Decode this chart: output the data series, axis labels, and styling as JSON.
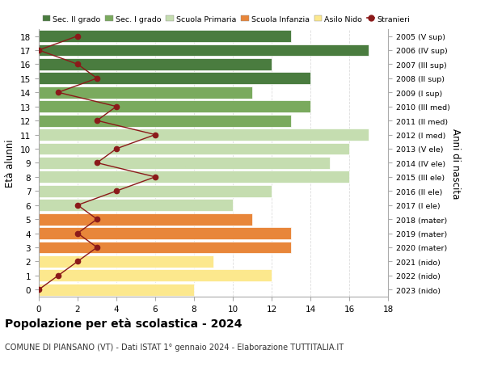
{
  "ages": [
    0,
    1,
    2,
    3,
    4,
    5,
    6,
    7,
    8,
    9,
    10,
    11,
    12,
    13,
    14,
    15,
    16,
    17,
    18
  ],
  "bar_values": [
    8,
    12,
    9,
    13,
    13,
    11,
    10,
    12,
    16,
    15,
    16,
    17,
    13,
    14,
    11,
    14,
    12,
    17,
    13
  ],
  "bar_colors": [
    "#fce88d",
    "#fce88d",
    "#fce88d",
    "#e8863a",
    "#e8863a",
    "#e8863a",
    "#c5ddb0",
    "#c5ddb0",
    "#c5ddb0",
    "#c5ddb0",
    "#c5ddb0",
    "#c5ddb0",
    "#7aaa5e",
    "#7aaa5e",
    "#7aaa5e",
    "#4a7c3f",
    "#4a7c3f",
    "#4a7c3f",
    "#4a7c3f"
  ],
  "stranieri": [
    0,
    1,
    2,
    3,
    2,
    3,
    2,
    4,
    6,
    3,
    4,
    6,
    3,
    4,
    1,
    3,
    2,
    0,
    2
  ],
  "right_labels": [
    "2023 (nido)",
    "2022 (nido)",
    "2021 (nido)",
    "2020 (mater)",
    "2019 (mater)",
    "2018 (mater)",
    "2017 (I ele)",
    "2016 (II ele)",
    "2015 (III ele)",
    "2014 (IV ele)",
    "2013 (V ele)",
    "2012 (I med)",
    "2011 (II med)",
    "2010 (III med)",
    "2009 (I sup)",
    "2008 (II sup)",
    "2007 (III sup)",
    "2006 (IV sup)",
    "2005 (V sup)"
  ],
  "ylabel": "Età alunni",
  "right_ylabel": "Anni di nascita",
  "title": "Popolazione per età scolastica - 2024",
  "subtitle": "COMUNE DI PIANSANO (VT) - Dati ISTAT 1° gennaio 2024 - Elaborazione TUTTITALIA.IT",
  "xlim": [
    0,
    18
  ],
  "ylim": [
    -0.5,
    18.5
  ],
  "xticks": [
    0,
    2,
    4,
    6,
    8,
    10,
    12,
    14,
    16,
    18
  ],
  "yticks": [
    0,
    1,
    2,
    3,
    4,
    5,
    6,
    7,
    8,
    9,
    10,
    11,
    12,
    13,
    14,
    15,
    16,
    17,
    18
  ],
  "legend_labels": [
    "Sec. II grado",
    "Sec. I grado",
    "Scuola Primaria",
    "Scuola Infanzia",
    "Asilo Nido",
    "Stranieri"
  ],
  "legend_colors": [
    "#4a7c3f",
    "#7aaa5e",
    "#c5ddb0",
    "#e8863a",
    "#fce88d",
    "#8b1a1a"
  ],
  "bar_height": 0.85,
  "stranieri_color": "#8b1a1a",
  "grid_color": "#dddddd",
  "bg_color": "#ffffff"
}
